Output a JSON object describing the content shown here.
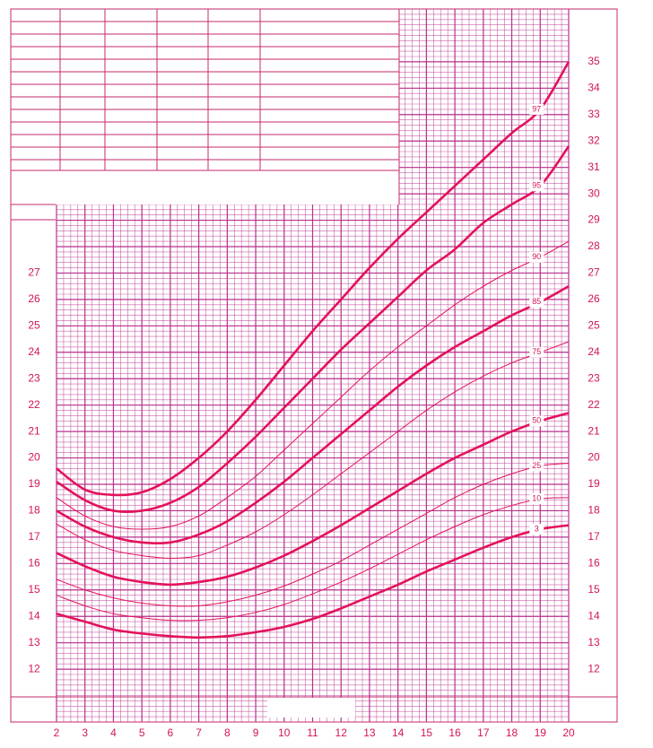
{
  "chart_data": {
    "type": "line",
    "x": [
      2,
      3,
      4,
      5,
      6,
      7,
      8,
      9,
      10,
      11,
      12,
      13,
      14,
      15,
      16,
      17,
      18,
      19,
      20
    ],
    "xlim": [
      2,
      20
    ],
    "xticks": [
      2,
      3,
      4,
      5,
      6,
      7,
      8,
      9,
      10,
      11,
      12,
      13,
      14,
      15,
      16,
      17,
      18,
      19,
      20
    ],
    "ylim": [
      10,
      37
    ],
    "yticks": [
      12,
      13,
      14,
      15,
      16,
      17,
      18,
      19,
      20,
      21,
      22,
      23,
      24,
      25,
      26,
      27,
      28,
      29,
      30,
      31,
      32,
      33,
      34,
      35
    ],
    "yticks_left": [
      12,
      13,
      14,
      15,
      16,
      17,
      18,
      19,
      20,
      21,
      22,
      23,
      24,
      25,
      26,
      27
    ],
    "grid": true,
    "grid_color": "#b8308c",
    "series": [
      {
        "name": "97",
        "color": "#e3125a",
        "line_style": "thick",
        "values": [
          19.6,
          18.8,
          18.6,
          18.7,
          19.2,
          20.0,
          21.0,
          22.2,
          23.5,
          24.8,
          26.0,
          27.2,
          28.3,
          29.3,
          30.3,
          31.3,
          32.3,
          33.2,
          35.0
        ]
      },
      {
        "name": "95",
        "color": "#e3125a",
        "line_style": "thick",
        "values": [
          19.1,
          18.4,
          18.0,
          18.0,
          18.3,
          18.9,
          19.8,
          20.8,
          21.9,
          23.0,
          24.1,
          25.1,
          26.1,
          27.1,
          27.9,
          28.9,
          29.6,
          30.3,
          31.8
        ]
      },
      {
        "name": "90",
        "color": "#e3125a",
        "line_style": "thin",
        "values": [
          18.5,
          17.8,
          17.4,
          17.3,
          17.4,
          17.8,
          18.5,
          19.3,
          20.3,
          21.3,
          22.3,
          23.3,
          24.2,
          25.0,
          25.8,
          26.5,
          27.1,
          27.6,
          28.2
        ]
      },
      {
        "name": "85",
        "color": "#e3125a",
        "line_style": "thick",
        "values": [
          18.0,
          17.4,
          17.0,
          16.8,
          16.8,
          17.1,
          17.6,
          18.3,
          19.1,
          20.0,
          20.9,
          21.8,
          22.7,
          23.5,
          24.2,
          24.8,
          25.4,
          25.9,
          26.5
        ]
      },
      {
        "name": "75",
        "color": "#e3125a",
        "line_style": "thin",
        "values": [
          17.5,
          16.9,
          16.5,
          16.3,
          16.2,
          16.3,
          16.7,
          17.2,
          17.85,
          18.6,
          19.4,
          20.2,
          21.0,
          21.8,
          22.5,
          23.1,
          23.6,
          24.0,
          24.4
        ]
      },
      {
        "name": "50",
        "color": "#e3125a",
        "line_style": "thick",
        "values": [
          16.4,
          15.9,
          15.5,
          15.3,
          15.2,
          15.3,
          15.5,
          15.85,
          16.3,
          16.85,
          17.45,
          18.1,
          18.75,
          19.4,
          20.0,
          20.5,
          21.0,
          21.4,
          21.7
        ]
      },
      {
        "name": "25",
        "color": "#e3125a",
        "line_style": "thin",
        "values": [
          15.4,
          15.0,
          14.7,
          14.5,
          14.4,
          14.4,
          14.55,
          14.8,
          15.15,
          15.6,
          16.1,
          16.7,
          17.3,
          17.9,
          18.5,
          19.0,
          19.4,
          19.7,
          19.8
        ]
      },
      {
        "name": "10",
        "color": "#e3125a",
        "line_style": "thin",
        "values": [
          14.8,
          14.4,
          14.1,
          13.95,
          13.85,
          13.85,
          13.95,
          14.15,
          14.45,
          14.85,
          15.3,
          15.8,
          16.35,
          16.9,
          17.4,
          17.85,
          18.2,
          18.45,
          18.5
        ]
      },
      {
        "name": "3",
        "color": "#e3125a",
        "line_style": "thick",
        "values": [
          14.1,
          13.8,
          13.5,
          13.35,
          13.25,
          13.2,
          13.25,
          13.4,
          13.6,
          13.9,
          14.3,
          14.75,
          15.2,
          15.7,
          16.15,
          16.6,
          17.0,
          17.3,
          17.45
        ]
      }
    ]
  }
}
